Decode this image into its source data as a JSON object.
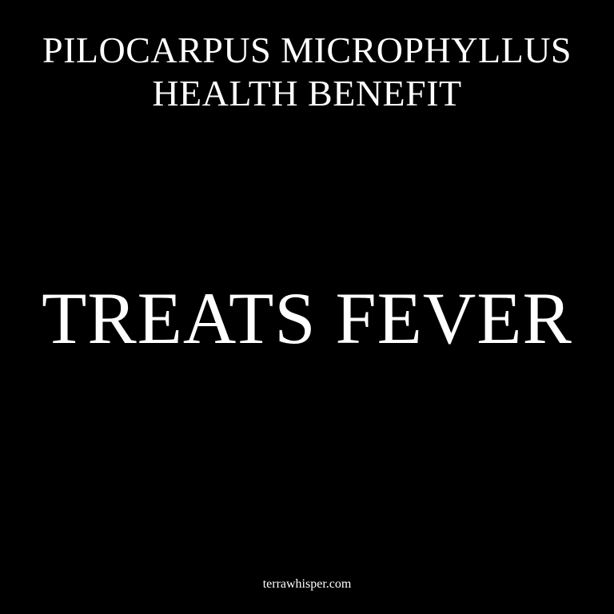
{
  "header": {
    "line1": "PILOCARPUS MICROPHYLLUS",
    "line2": "HEALTH BENEFIT"
  },
  "headline": "TREATS FEVER",
  "footer": {
    "site": "terrawhisper.com"
  },
  "colors": {
    "background": "#000000",
    "text": "#ffffff"
  }
}
